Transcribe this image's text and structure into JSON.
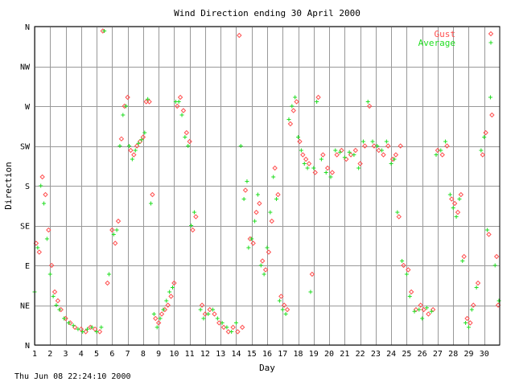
{
  "footer": {
    "timestamp": "Thu Jun 08 22:24:10 2000"
  },
  "colors": {
    "gust": "#ff5050",
    "average": "#22dd22",
    "grid": "#999999",
    "frame": "#000000"
  },
  "chart_data": {
    "type": "scatter",
    "title": "Wind Direction ending 30 April 2000",
    "xlabel": "Day",
    "ylabel": "Direction",
    "xlim": [
      1,
      31
    ],
    "ylim": [
      0,
      360
    ],
    "x_ticks": [
      "1",
      "2",
      "3",
      "4",
      "5",
      "6",
      "7",
      "8",
      "9",
      "10",
      "11",
      "12",
      "13",
      "14",
      "15",
      "16",
      "17",
      "18",
      "19",
      "20",
      "21",
      "22",
      "23",
      "24",
      "25",
      "26",
      "27",
      "28",
      "29",
      "30"
    ],
    "y_ticks": [
      {
        "label": "N",
        "value": 0
      },
      {
        "label": "NE",
        "value": 45
      },
      {
        "label": "E",
        "value": 90
      },
      {
        "label": "SE",
        "value": 135
      },
      {
        "label": "S",
        "value": 180
      },
      {
        "label": "SW",
        "value": 225
      },
      {
        "label": "W",
        "value": 270
      },
      {
        "label": "NW",
        "value": 315
      },
      {
        "label": "N",
        "value": 360
      }
    ],
    "legend": {
      "position": "top-right"
    },
    "grid": true,
    "series": [
      {
        "name": "Gust",
        "marker": "diamond",
        "points": [
          [
            1.1,
            115
          ],
          [
            1.3,
            105
          ],
          [
            1.5,
            190
          ],
          [
            1.7,
            170
          ],
          [
            1.9,
            130
          ],
          [
            2.1,
            90
          ],
          [
            2.3,
            60
          ],
          [
            2.5,
            50
          ],
          [
            2.7,
            40
          ],
          [
            3.0,
            30
          ],
          [
            3.3,
            25
          ],
          [
            3.6,
            20
          ],
          [
            4.0,
            18
          ],
          [
            4.3,
            15
          ],
          [
            4.6,
            20
          ],
          [
            4.9,
            18
          ],
          [
            5.2,
            15
          ],
          [
            5.4,
            355
          ],
          [
            5.7,
            70
          ],
          [
            6.0,
            130
          ],
          [
            6.2,
            115
          ],
          [
            6.4,
            140
          ],
          [
            6.6,
            233
          ],
          [
            6.8,
            270
          ],
          [
            7.0,
            280
          ],
          [
            7.2,
            220
          ],
          [
            7.4,
            215
          ],
          [
            7.6,
            225
          ],
          [
            7.8,
            230
          ],
          [
            8.0,
            235
          ],
          [
            8.2,
            275
          ],
          [
            8.4,
            275
          ],
          [
            8.6,
            170
          ],
          [
            8.8,
            30
          ],
          [
            9.0,
            25
          ],
          [
            9.2,
            35
          ],
          [
            9.4,
            40
          ],
          [
            9.6,
            45
          ],
          [
            9.8,
            55
          ],
          [
            10.0,
            70
          ],
          [
            10.2,
            270
          ],
          [
            10.4,
            280
          ],
          [
            10.6,
            265
          ],
          [
            10.8,
            240
          ],
          [
            11.0,
            230
          ],
          [
            11.2,
            130
          ],
          [
            11.4,
            145
          ],
          [
            11.8,
            45
          ],
          [
            12.0,
            35
          ],
          [
            12.3,
            40
          ],
          [
            12.6,
            35
          ],
          [
            12.9,
            25
          ],
          [
            13.2,
            20
          ],
          [
            13.5,
            15
          ],
          [
            13.8,
            20
          ],
          [
            14.1,
            15
          ],
          [
            14.2,
            350
          ],
          [
            14.4,
            20
          ],
          [
            14.6,
            175
          ],
          [
            14.9,
            120
          ],
          [
            15.1,
            115
          ],
          [
            15.3,
            150
          ],
          [
            15.5,
            160
          ],
          [
            15.7,
            95
          ],
          [
            15.9,
            85
          ],
          [
            16.1,
            105
          ],
          [
            16.3,
            140
          ],
          [
            16.5,
            200
          ],
          [
            16.7,
            170
          ],
          [
            16.9,
            55
          ],
          [
            17.1,
            45
          ],
          [
            17.3,
            40
          ],
          [
            17.5,
            250
          ],
          [
            17.7,
            265
          ],
          [
            17.9,
            275
          ],
          [
            18.1,
            230
          ],
          [
            18.3,
            215
          ],
          [
            18.5,
            210
          ],
          [
            18.7,
            205
          ],
          [
            18.9,
            80
          ],
          [
            19.1,
            195
          ],
          [
            19.3,
            280
          ],
          [
            19.6,
            215
          ],
          [
            19.9,
            200
          ],
          [
            20.2,
            195
          ],
          [
            20.5,
            215
          ],
          [
            20.8,
            220
          ],
          [
            21.1,
            210
          ],
          [
            21.4,
            215
          ],
          [
            21.7,
            220
          ],
          [
            22.0,
            205
          ],
          [
            22.3,
            225
          ],
          [
            22.6,
            270
          ],
          [
            22.9,
            225
          ],
          [
            23.2,
            220
          ],
          [
            23.5,
            215
          ],
          [
            23.8,
            225
          ],
          [
            24.1,
            210
          ],
          [
            24.3,
            215
          ],
          [
            24.5,
            145
          ],
          [
            24.6,
            225
          ],
          [
            24.8,
            90
          ],
          [
            25.1,
            85
          ],
          [
            25.3,
            60
          ],
          [
            25.6,
            40
          ],
          [
            25.9,
            45
          ],
          [
            26.1,
            40
          ],
          [
            26.4,
            35
          ],
          [
            26.7,
            40
          ],
          [
            27.0,
            220
          ],
          [
            27.3,
            215
          ],
          [
            27.6,
            225
          ],
          [
            27.9,
            165
          ],
          [
            28.1,
            160
          ],
          [
            28.3,
            150
          ],
          [
            28.5,
            170
          ],
          [
            28.7,
            100
          ],
          [
            28.9,
            30
          ],
          [
            29.1,
            25
          ],
          [
            29.3,
            45
          ],
          [
            29.6,
            70
          ],
          [
            29.9,
            215
          ],
          [
            30.1,
            240
          ],
          [
            30.3,
            125
          ],
          [
            30.5,
            260
          ],
          [
            30.8,
            100
          ],
          [
            30.9,
            45
          ]
        ]
      },
      {
        "name": "Average",
        "marker": "plus",
        "points": [
          [
            1.0,
            60
          ],
          [
            1.2,
            110
          ],
          [
            1.4,
            180
          ],
          [
            1.6,
            160
          ],
          [
            1.8,
            120
          ],
          [
            2.0,
            80
          ],
          [
            2.2,
            55
          ],
          [
            2.4,
            45
          ],
          [
            2.6,
            40
          ],
          [
            2.9,
            30
          ],
          [
            3.2,
            25
          ],
          [
            3.5,
            22
          ],
          [
            3.8,
            18
          ],
          [
            4.1,
            15
          ],
          [
            4.4,
            18
          ],
          [
            4.7,
            20
          ],
          [
            5.0,
            15
          ],
          [
            5.3,
            20
          ],
          [
            5.5,
            355
          ],
          [
            5.8,
            80
          ],
          [
            6.1,
            125
          ],
          [
            6.3,
            130
          ],
          [
            6.5,
            225
          ],
          [
            6.7,
            260
          ],
          [
            6.9,
            270
          ],
          [
            7.1,
            225
          ],
          [
            7.3,
            210
          ],
          [
            7.5,
            220
          ],
          [
            7.7,
            228
          ],
          [
            7.9,
            232
          ],
          [
            8.1,
            240
          ],
          [
            8.3,
            278
          ],
          [
            8.5,
            160
          ],
          [
            8.7,
            35
          ],
          [
            8.9,
            20
          ],
          [
            9.1,
            30
          ],
          [
            9.3,
            40
          ],
          [
            9.5,
            50
          ],
          [
            9.7,
            60
          ],
          [
            9.9,
            65
          ],
          [
            10.1,
            275
          ],
          [
            10.3,
            275
          ],
          [
            10.5,
            260
          ],
          [
            10.7,
            235
          ],
          [
            10.9,
            225
          ],
          [
            11.1,
            135
          ],
          [
            11.3,
            150
          ],
          [
            11.7,
            40
          ],
          [
            11.9,
            30
          ],
          [
            12.2,
            35
          ],
          [
            12.5,
            40
          ],
          [
            12.8,
            30
          ],
          [
            13.1,
            25
          ],
          [
            13.4,
            20
          ],
          [
            13.7,
            15
          ],
          [
            14.0,
            25
          ],
          [
            14.3,
            225
          ],
          [
            14.5,
            165
          ],
          [
            14.7,
            185
          ],
          [
            14.8,
            110
          ],
          [
            15.0,
            120
          ],
          [
            15.2,
            140
          ],
          [
            15.4,
            170
          ],
          [
            15.6,
            90
          ],
          [
            15.8,
            80
          ],
          [
            16.0,
            110
          ],
          [
            16.2,
            150
          ],
          [
            16.4,
            190
          ],
          [
            16.6,
            165
          ],
          [
            16.8,
            50
          ],
          [
            17.0,
            40
          ],
          [
            17.2,
            35
          ],
          [
            17.4,
            255
          ],
          [
            17.6,
            270
          ],
          [
            17.8,
            280
          ],
          [
            18.0,
            235
          ],
          [
            18.2,
            220
          ],
          [
            18.4,
            205
          ],
          [
            18.6,
            200
          ],
          [
            18.8,
            60
          ],
          [
            19.0,
            200
          ],
          [
            19.2,
            275
          ],
          [
            19.5,
            210
          ],
          [
            19.8,
            195
          ],
          [
            20.1,
            190
          ],
          [
            20.4,
            220
          ],
          [
            20.7,
            218
          ],
          [
            21.0,
            212
          ],
          [
            21.3,
            218
          ],
          [
            21.6,
            215
          ],
          [
            21.9,
            200
          ],
          [
            22.2,
            230
          ],
          [
            22.5,
            275
          ],
          [
            22.8,
            230
          ],
          [
            23.1,
            225
          ],
          [
            23.4,
            220
          ],
          [
            23.7,
            230
          ],
          [
            24.0,
            205
          ],
          [
            24.2,
            210
          ],
          [
            24.4,
            150
          ],
          [
            24.7,
            95
          ],
          [
            25.0,
            80
          ],
          [
            25.2,
            55
          ],
          [
            25.5,
            38
          ],
          [
            25.8,
            40
          ],
          [
            26.0,
            30
          ],
          [
            26.3,
            42
          ],
          [
            26.6,
            38
          ],
          [
            26.9,
            215
          ],
          [
            27.2,
            220
          ],
          [
            27.5,
            230
          ],
          [
            27.8,
            170
          ],
          [
            28.0,
            155
          ],
          [
            28.2,
            145
          ],
          [
            28.4,
            165
          ],
          [
            28.6,
            95
          ],
          [
            28.8,
            25
          ],
          [
            29.0,
            20
          ],
          [
            29.2,
            40
          ],
          [
            29.5,
            65
          ],
          [
            29.8,
            220
          ],
          [
            30.0,
            235
          ],
          [
            30.2,
            130
          ],
          [
            30.4,
            280
          ],
          [
            30.7,
            90
          ],
          [
            30.95,
            50
          ]
        ]
      }
    ]
  }
}
